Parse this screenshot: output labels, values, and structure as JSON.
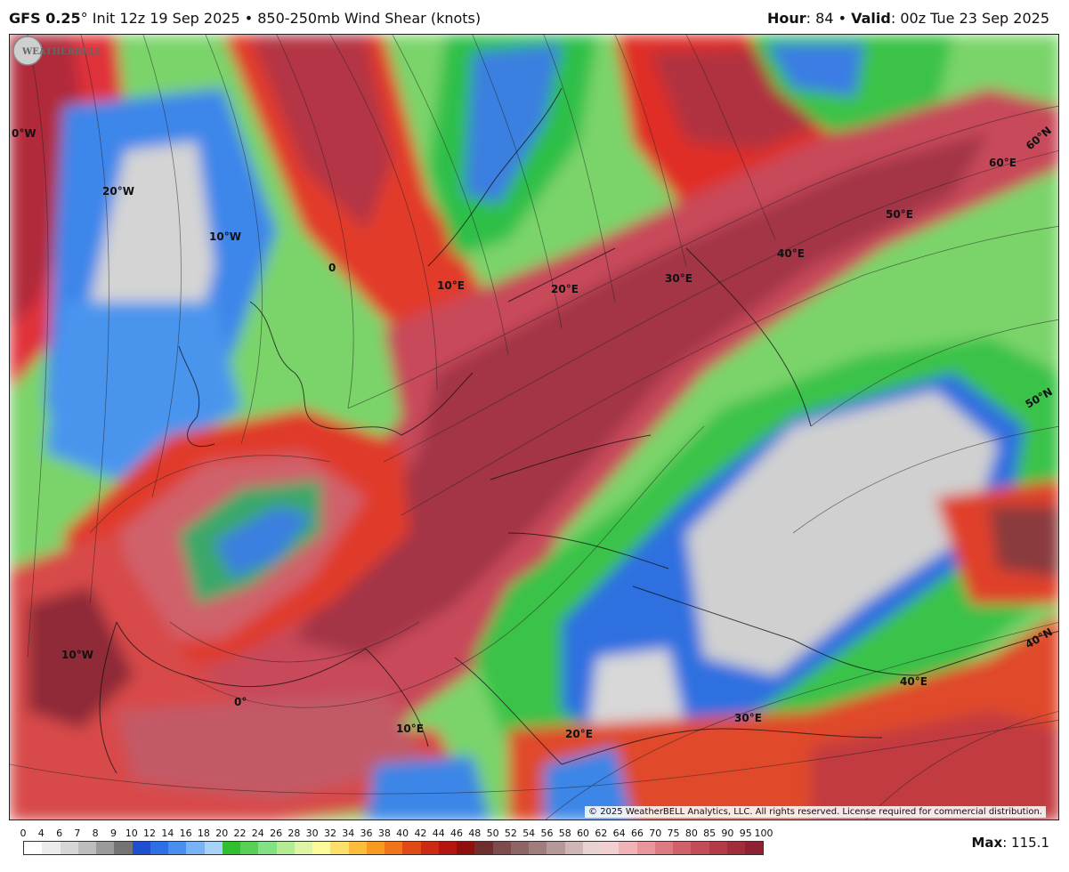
{
  "header": {
    "model": "GFS 0.25",
    "degree": "°",
    "init": " Init 12z 19 Sep 2025",
    "sep": " • ",
    "product": "850-250mb Wind Shear (knots)",
    "hour_label": "Hour",
    "hour_value": ": 84",
    "valid_label": "Valid",
    "valid_value": ": 00z Tue 23 Sep 2025"
  },
  "map": {
    "meridian_labels": [
      "0°W",
      "20°W",
      "10°W",
      "0",
      "10°E",
      "20°E",
      "30°E",
      "40°E",
      "50°E",
      "60°E",
      "10°W",
      "0°",
      "10°E",
      "20°E",
      "30°E",
      "40°E"
    ],
    "parallel_labels": [
      "60°N",
      "50°N",
      "40°N"
    ],
    "copyright": "© 2025 WeatherBELL Analytics, LLC. All rights reserved. License required for commercial distribution.",
    "logo_text": "WEATHERBELL"
  },
  "legend": {
    "ticks": [
      "0",
      "4",
      "6",
      "7",
      "8",
      "9",
      "10",
      "12",
      "14",
      "16",
      "18",
      "20",
      "22",
      "24",
      "26",
      "28",
      "30",
      "32",
      "34",
      "36",
      "38",
      "40",
      "42",
      "44",
      "46",
      "48",
      "50",
      "52",
      "54",
      "56",
      "58",
      "60",
      "62",
      "64",
      "66",
      "70",
      "75",
      "80",
      "85",
      "90",
      "95",
      "100"
    ],
    "colors": [
      "#ffffff",
      "#ececec",
      "#d6d6d6",
      "#bdbdbd",
      "#9a9a9a",
      "#737373",
      "#1f4fd1",
      "#2f6fe6",
      "#4a8ff0",
      "#79b3f7",
      "#a7d3fb",
      "#2fbf2f",
      "#56d156",
      "#84e084",
      "#b3ec93",
      "#dff5a5",
      "#fbfb9a",
      "#fde06a",
      "#fbbd3b",
      "#f79a1f",
      "#f0741a",
      "#e04a14",
      "#cc2a12",
      "#b4160f",
      "#8f0f0f",
      "#6e2e2e",
      "#7d4b4b",
      "#8e6464",
      "#a07d7d",
      "#b59898",
      "#cfb6b6",
      "#e8d2d2",
      "#f4cfd2",
      "#f0b3b7",
      "#e8969c",
      "#de7a82",
      "#d0616b",
      "#c24c58",
      "#b33b48",
      "#a12d3b",
      "#8f2232"
    ],
    "max_label": "Max",
    "max_value": ": 115.1"
  }
}
